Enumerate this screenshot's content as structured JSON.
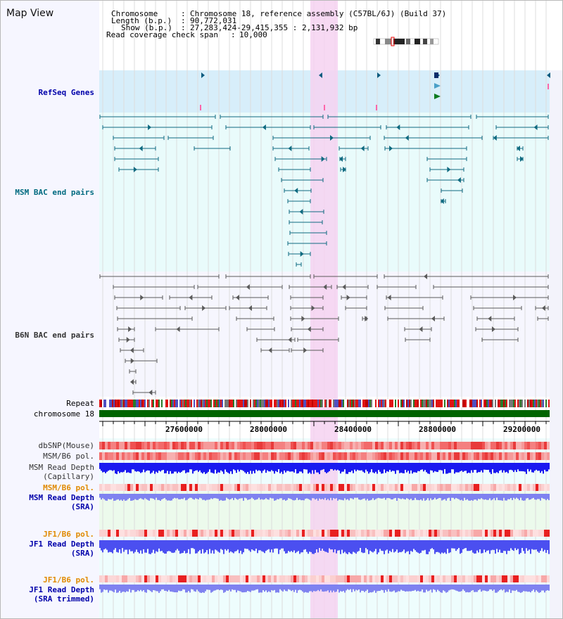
{
  "header": {
    "title": "Map View",
    "chromosome_label": "Chromosome",
    "chromosome_value": "Chromosome 18, reference assembly (C57BL/6J) (Build 37)",
    "length_label": "Length (b.p.)",
    "length_value": "90,772,031",
    "show_label": "Show (b.p.)",
    "show_value": "27,283,424-29,415,355 : 2,131,932 bp",
    "coverage_label": "Read coverage check span",
    "coverage_value": "10,000"
  },
  "tracks": {
    "refseq": "RefSeq Genes",
    "msm_bac": "MSM BAC end pairs",
    "b6n_bac": "B6N BAC end pairs",
    "repeat": "Repeat",
    "chromosome": "chromosome 18",
    "dbsnp": "dbSNP(Mouse)",
    "msm_b6_pol": "MSM/B6 pol.",
    "msm_depth_cap_1": "MSM Read Depth",
    "msm_depth_cap_2": "(Capillary)",
    "msm_b6_pol_2": "MSM/B6 pol.",
    "msm_depth_sra_1": "MSM Read Depth",
    "msm_depth_sra_2": "(SRA)",
    "jf1_b6_pol": "JF1/B6 pol.",
    "jf1_depth_sra_1": "JF1 Read Depth",
    "jf1_depth_sra_2": "(SRA)",
    "jf1_b6_pol_2": "JF1/B6 pol.",
    "jf1_depth_trim_1": "JF1 Read Depth",
    "jf1_depth_trim_2": "(SRA trimmed)"
  },
  "axis": {
    "ticks": [
      "27600000",
      "28000000",
      "28400000",
      "28800000",
      "29200000"
    ]
  },
  "colors": {
    "refseq_bg": "#d7eefa",
    "bac_bg": "#e9fbfb",
    "highlight": "#f6d2f1",
    "msm_feature": "#0f6a80",
    "b6n_feature": "#5a5a5a",
    "chromosome": "#006400",
    "depth_capillary": "#1a1af0",
    "depth_sra": "#7f82f0"
  }
}
